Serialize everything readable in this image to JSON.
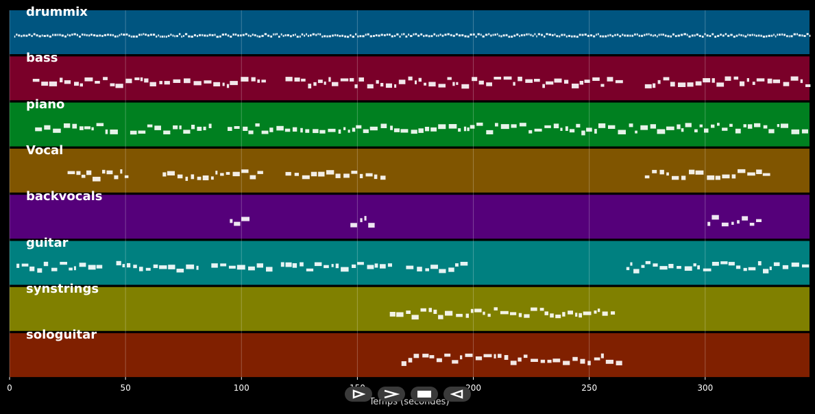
{
  "chart_data": {
    "type": "piano-roll",
    "xlabel": "Temps (secondes)",
    "xlim": [
      0,
      345
    ],
    "xticks": [
      0,
      50,
      100,
      150,
      200,
      250,
      300
    ],
    "tracks": [
      {
        "name": "drummix",
        "color": "#005580",
        "segments": [
          [
            2,
            345
          ]
        ],
        "dense": true
      },
      {
        "name": "bass",
        "color": "#7a0029",
        "segments": [
          [
            10,
            111
          ],
          [
            119,
            262
          ],
          [
            274,
            344
          ]
        ]
      },
      {
        "name": "piano",
        "color": "#008020",
        "segments": [
          [
            11,
            46
          ],
          [
            52,
            87
          ],
          [
            94,
            345
          ]
        ]
      },
      {
        "name": "Vocal",
        "color": "#805500",
        "segments": [
          [
            25,
            51
          ],
          [
            66,
            110
          ],
          [
            119,
            160
          ],
          [
            274,
            328
          ]
        ]
      },
      {
        "name": "backvocals",
        "color": "#55007a",
        "segments": [
          [
            95,
            103
          ],
          [
            147,
            155
          ],
          [
            301,
            325
          ]
        ]
      },
      {
        "name": "guitar",
        "color": "#008080",
        "segments": [
          [
            3,
            38
          ],
          [
            46,
            81
          ],
          [
            87,
            112
          ],
          [
            117,
            165
          ],
          [
            171,
            198
          ],
          [
            266,
            345
          ]
        ]
      },
      {
        "name": "synstrings",
        "color": "#808000",
        "segments": [
          [
            164,
            261
          ]
        ]
      },
      {
        "name": "sologuitar",
        "color": "#802000",
        "segments": [
          [
            169,
            262
          ]
        ]
      }
    ]
  },
  "controls": {
    "play_icon": "play-icon",
    "forward_icon": "forward-icon",
    "stop_icon": "stop-icon",
    "rewind_icon": "rewind-icon"
  }
}
